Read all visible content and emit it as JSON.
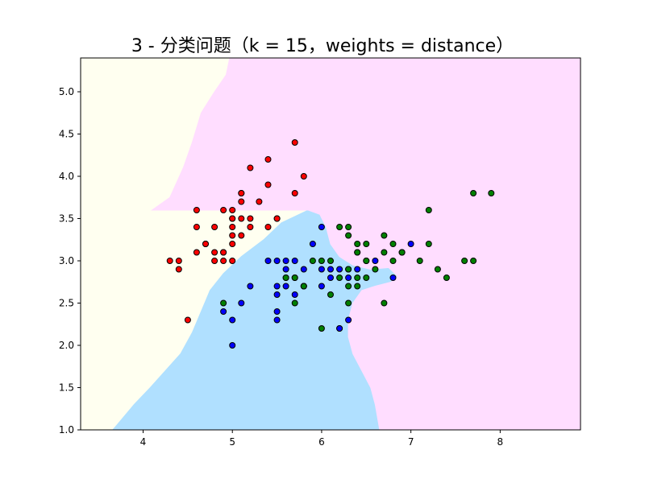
{
  "chart_data": {
    "type": "scatter",
    "title": "3 - 分类问题（k = 15，weights = distance）",
    "xlabel": "",
    "ylabel": "",
    "xlim": [
      3.3,
      8.9
    ],
    "ylim": [
      1.0,
      5.4
    ],
    "xticks": [
      "4",
      "5",
      "6",
      "7",
      "8"
    ],
    "yticks": [
      "1.0",
      "1.5",
      "2.0",
      "2.5",
      "3.0",
      "3.5",
      "4.0",
      "4.5",
      "5.0"
    ],
    "grid": false,
    "legend": "none",
    "region_colors": {
      "red_region": "#FFFFF0",
      "blue_region": "#B0E0FF",
      "green_region": "#FFDDFF"
    },
    "decision_regions": {
      "yellow_top": [
        [
          3.3,
          5.4
        ],
        [
          4.97,
          5.4
        ],
        [
          4.93,
          5.2
        ],
        [
          4.8,
          5.0
        ],
        [
          4.65,
          4.75
        ],
        [
          4.55,
          4.4
        ],
        [
          4.45,
          4.1
        ],
        [
          4.3,
          3.75
        ],
        [
          4.1,
          3.6
        ],
        [
          5.85,
          3.6
        ],
        [
          5.55,
          3.45
        ],
        [
          5.35,
          3.25
        ],
        [
          5.1,
          3.05
        ],
        [
          4.9,
          2.85
        ],
        [
          4.75,
          2.65
        ],
        [
          4.65,
          2.4
        ],
        [
          4.55,
          2.15
        ],
        [
          4.42,
          1.9
        ],
        [
          4.25,
          1.7
        ],
        [
          4.08,
          1.5
        ],
        [
          3.9,
          1.3
        ],
        [
          3.7,
          1.05
        ],
        [
          3.66,
          1.0
        ],
        [
          3.3,
          1.0
        ]
      ],
      "blue_bottom": [
        [
          3.66,
          1.0
        ],
        [
          3.7,
          1.05
        ],
        [
          3.9,
          1.3
        ],
        [
          4.08,
          1.5
        ],
        [
          4.25,
          1.7
        ],
        [
          4.42,
          1.9
        ],
        [
          4.55,
          2.15
        ],
        [
          4.65,
          2.4
        ],
        [
          4.75,
          2.65
        ],
        [
          4.9,
          2.85
        ],
        [
          5.1,
          3.05
        ],
        [
          5.35,
          3.25
        ],
        [
          5.55,
          3.45
        ],
        [
          5.85,
          3.6
        ],
        [
          5.98,
          3.55
        ],
        [
          6.05,
          3.4
        ],
        [
          6.1,
          3.2
        ],
        [
          6.2,
          3.05
        ],
        [
          6.35,
          2.95
        ],
        [
          6.55,
          2.9
        ],
        [
          6.75,
          2.92
        ],
        [
          6.85,
          2.82
        ],
        [
          6.78,
          2.75
        ],
        [
          6.6,
          2.7
        ],
        [
          6.45,
          2.65
        ],
        [
          6.35,
          2.5
        ],
        [
          6.3,
          2.3
        ],
        [
          6.3,
          2.1
        ],
        [
          6.35,
          1.9
        ],
        [
          6.45,
          1.7
        ],
        [
          6.55,
          1.5
        ],
        [
          6.6,
          1.3
        ],
        [
          6.65,
          1.0
        ]
      ],
      "pink_right": [
        [
          4.97,
          5.4
        ],
        [
          8.9,
          5.4
        ],
        [
          8.9,
          1.0
        ],
        [
          6.65,
          1.0
        ],
        [
          6.6,
          1.3
        ],
        [
          6.55,
          1.5
        ],
        [
          6.45,
          1.7
        ],
        [
          6.35,
          1.9
        ],
        [
          6.3,
          2.1
        ],
        [
          6.3,
          2.3
        ],
        [
          6.35,
          2.5
        ],
        [
          6.45,
          2.65
        ],
        [
          6.6,
          2.7
        ],
        [
          6.78,
          2.75
        ],
        [
          6.85,
          2.82
        ],
        [
          6.75,
          2.92
        ],
        [
          6.55,
          2.9
        ],
        [
          6.35,
          2.95
        ],
        [
          6.2,
          3.05
        ],
        [
          6.1,
          3.2
        ],
        [
          6.05,
          3.4
        ],
        [
          5.98,
          3.55
        ],
        [
          5.85,
          3.6
        ],
        [
          4.1,
          3.6
        ],
        [
          4.3,
          3.75
        ],
        [
          4.45,
          4.1
        ],
        [
          4.55,
          4.4
        ],
        [
          4.65,
          4.75
        ],
        [
          4.8,
          5.0
        ],
        [
          4.93,
          5.2
        ]
      ]
    },
    "series": [
      {
        "color": "#FF0000",
        "x": [
          5.7,
          5.4,
          5.2,
          5.1,
          5.3,
          5.8,
          5.7,
          4.8,
          4.7,
          5.0,
          5.1,
          4.9,
          5.5,
          4.6,
          5.0,
          5.4,
          4.9,
          5.1,
          5.0,
          5.2,
          4.5,
          4.3,
          4.4,
          4.4,
          4.6,
          4.7,
          4.8,
          4.9,
          5.0,
          5.0,
          5.1,
          5.2,
          5.4,
          4.9,
          5.0,
          5.1,
          4.6,
          4.8,
          5.5,
          5.0
        ],
        "y": [
          4.4,
          4.2,
          4.1,
          3.8,
          3.7,
          4.0,
          3.8,
          3.4,
          3.2,
          3.6,
          3.5,
          3.1,
          3.5,
          3.4,
          3.4,
          3.9,
          3.6,
          3.8,
          3.3,
          3.4,
          2.3,
          3.0,
          3.0,
          2.9,
          3.1,
          3.2,
          3.0,
          3.1,
          3.2,
          3.0,
          3.3,
          3.5,
          3.4,
          3.0,
          3.5,
          3.7,
          3.6,
          3.1,
          3.5,
          3.5
        ]
      },
      {
        "color": "#0000FF",
        "x": [
          6.0,
          5.9,
          5.5,
          5.6,
          5.7,
          5.8,
          6.1,
          6.2,
          6.3,
          6.0,
          5.6,
          5.7,
          5.5,
          5.8,
          6.1,
          6.4,
          6.6,
          6.5,
          6.3,
          5.4,
          5.5,
          5.6,
          5.7,
          6.0,
          6.2,
          6.8,
          5.0,
          5.1,
          5.2,
          5.5,
          4.9,
          5.0,
          5.5,
          6.3,
          6.2,
          5.6,
          5.8,
          6.9,
          7.0
        ],
        "y": [
          3.4,
          3.2,
          3.0,
          3.0,
          3.0,
          2.9,
          2.9,
          2.9,
          2.9,
          2.9,
          2.8,
          2.8,
          2.7,
          2.7,
          2.8,
          2.9,
          3.0,
          3.0,
          2.8,
          3.0,
          2.6,
          2.7,
          2.6,
          2.7,
          2.2,
          2.8,
          2.3,
          2.5,
          2.7,
          2.4,
          2.4,
          2.0,
          2.3,
          2.3,
          2.2,
          2.9,
          2.7,
          3.1,
          3.2
        ]
      },
      {
        "color": "#008000",
        "x": [
          7.7,
          7.9,
          7.2,
          6.7,
          6.3,
          6.4,
          6.5,
          6.8,
          6.9,
          7.2,
          7.7,
          7.6,
          7.1,
          7.3,
          7.4,
          6.7,
          6.5,
          6.4,
          6.3,
          6.0,
          5.9,
          6.1,
          6.2,
          6.3,
          6.4,
          6.5,
          6.6,
          6.8,
          6.9,
          5.7,
          5.8,
          6.1,
          6.3,
          6.4,
          6.2,
          6.3,
          6.7,
          6.0,
          4.9,
          5.6,
          5.7,
          6.4
        ],
        "y": [
          3.8,
          3.8,
          3.6,
          3.3,
          3.3,
          3.2,
          3.2,
          3.2,
          3.1,
          3.2,
          3.0,
          3.0,
          3.0,
          2.9,
          2.8,
          3.1,
          3.0,
          3.1,
          3.4,
          3.0,
          3.0,
          3.0,
          3.4,
          2.9,
          2.8,
          2.8,
          2.9,
          3.0,
          3.1,
          2.8,
          2.7,
          2.6,
          2.5,
          2.7,
          2.8,
          2.7,
          2.5,
          2.2,
          2.5,
          2.8,
          2.5,
          3.1
        ]
      }
    ]
  }
}
